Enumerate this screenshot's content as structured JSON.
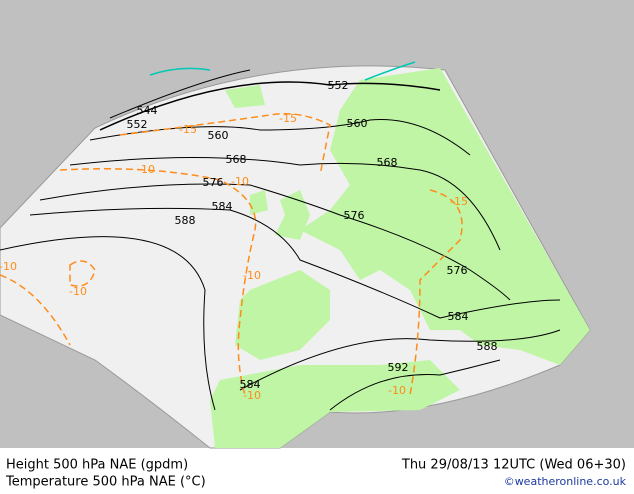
{
  "footer": {
    "line1": "Height 500 hPa NAE (gpdm)",
    "line2": "Temperature 500 hPa NAE (°C)",
    "datetime": "Thu 29/08/13 12UTC (Wed 06+30)",
    "credit": "©weatheronline.co.uk"
  },
  "map": {
    "height_labels": [
      "552",
      "544",
      "552",
      "560",
      "560",
      "568",
      "568",
      "576",
      "576",
      "576",
      "584",
      "584",
      "584",
      "588",
      "588",
      "592"
    ],
    "temperature_labels": [
      "-15",
      "-15",
      "-10",
      "-10",
      "-10",
      "-10",
      "-10",
      "-15",
      "-10",
      "-10"
    ]
  }
}
